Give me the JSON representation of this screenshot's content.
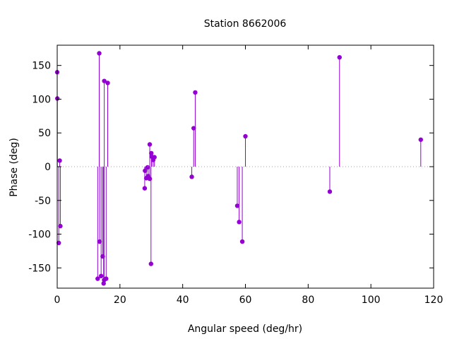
{
  "chart_data": {
    "type": "stem",
    "title": "Station 8662006",
    "xlabel": "Angular speed (deg/hr)",
    "ylabel": "Phase (deg)",
    "xlim": [
      0,
      120
    ],
    "ylim": [
      -180,
      180
    ],
    "xticks": [
      0,
      20,
      40,
      60,
      80,
      100,
      120
    ],
    "yticks": [
      -150,
      -100,
      -50,
      0,
      50,
      100,
      150
    ],
    "grid": false,
    "legend": "none",
    "color": "#9400d3",
    "series": [
      {
        "points": [
          [
            0.0,
            140
          ],
          [
            0.04,
            101
          ],
          [
            0.5,
            -113
          ],
          [
            0.8,
            9
          ],
          [
            1.0,
            -88
          ],
          [
            12.9,
            -166
          ],
          [
            13.4,
            168
          ],
          [
            13.5,
            -111
          ],
          [
            14.0,
            -162
          ],
          [
            14.5,
            -133
          ],
          [
            14.8,
            -173
          ],
          [
            14.96,
            -168
          ],
          [
            15.0,
            127
          ],
          [
            15.6,
            -166
          ],
          [
            16.1,
            124
          ],
          [
            27.9,
            -32
          ],
          [
            28.0,
            -6
          ],
          [
            28.4,
            -17
          ],
          [
            28.8,
            -1
          ],
          [
            29.0,
            -14
          ],
          [
            29.5,
            -18
          ],
          [
            29.5,
            33
          ],
          [
            29.9,
            -144
          ],
          [
            30.0,
            20
          ],
          [
            30.1,
            15
          ],
          [
            30.6,
            10
          ],
          [
            31.0,
            14
          ],
          [
            42.9,
            -15
          ],
          [
            43.5,
            57
          ],
          [
            44.0,
            110
          ],
          [
            57.4,
            -58
          ],
          [
            58.0,
            -82
          ],
          [
            59.0,
            -111
          ],
          [
            60.0,
            45
          ],
          [
            86.9,
            -37
          ],
          [
            90.0,
            162
          ],
          [
            115.9,
            40
          ]
        ]
      }
    ]
  }
}
